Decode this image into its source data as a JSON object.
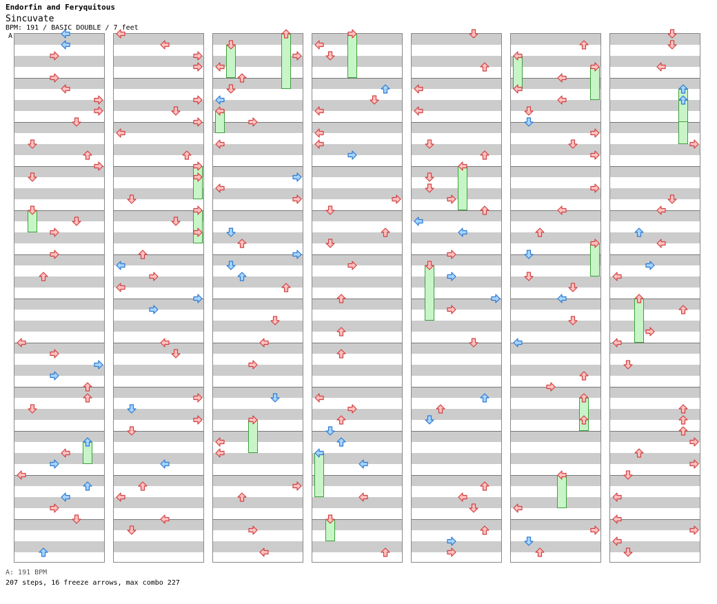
{
  "header": {
    "artist": "Endorfin and Feryquitous",
    "title": "Sincuvate",
    "info": "BPM: 191 / BASIC DOUBLE / 7 feet",
    "marker": "A"
  },
  "footer": {
    "bpm_legend": "A: 191 BPM",
    "stats": "207 steps, 16 freeze arrows, max combo 227"
  },
  "colors": {
    "arrow_red_fill": "#ffc0c0",
    "arrow_red_stroke": "#d04040",
    "arrow_blue_fill": "#a8d4ff",
    "arrow_blue_stroke": "#2a7ad0",
    "freeze_fill": "#c8f5c8",
    "stripe": "#cccccc"
  }
}
